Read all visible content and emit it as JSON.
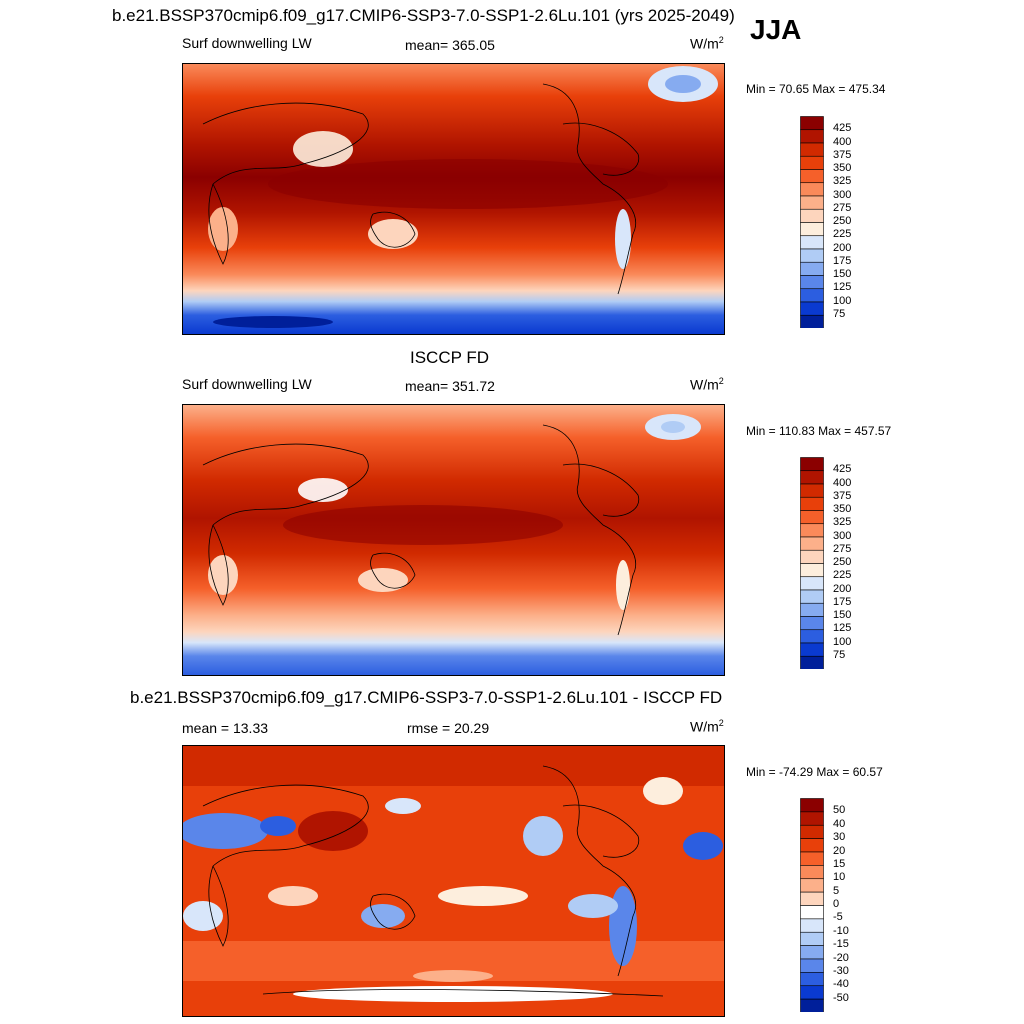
{
  "season": "JJA",
  "panels": [
    {
      "id": "model",
      "title": "b.e21.BSSP370cmip6.f09_g17.CMIP6-SSP3-7.0-SSP1-2.6Lu.101 (yrs 2025-2049)",
      "left_label": "Surf downwelling LW",
      "center_label": "mean= 365.05",
      "right_label": "W/m",
      "right_label_sup": "2",
      "minmax": "Min =  70.65 Max = 475.34",
      "colorbar_labels": [
        "425",
        "400",
        "375",
        "350",
        "325",
        "300",
        "275",
        "250",
        "225",
        "200",
        "175",
        "150",
        "125",
        "100",
        "75"
      ],
      "colorbar_colors": [
        "#8b0000",
        "#b01400",
        "#d12a00",
        "#e8400a",
        "#f5602a",
        "#fa8a5a",
        "#fcb08a",
        "#fdd5bd",
        "#fdeedd",
        "#d8e6fa",
        "#b0ccf5",
        "#86abf0",
        "#5a86ea",
        "#2c5ee0",
        "#0a3ad0",
        "#001f9a"
      ]
    },
    {
      "id": "obs",
      "title": "ISCCP FD",
      "left_label": "Surf downwelling LW",
      "center_label": "mean= 351.72",
      "right_label": "W/m",
      "right_label_sup": "2",
      "minmax": "Min = 110.83 Max = 457.57",
      "colorbar_labels": [
        "425",
        "400",
        "375",
        "350",
        "325",
        "300",
        "275",
        "250",
        "225",
        "200",
        "175",
        "150",
        "125",
        "100",
        "75"
      ],
      "colorbar_colors": [
        "#8b0000",
        "#b01400",
        "#d12a00",
        "#e8400a",
        "#f5602a",
        "#fa8a5a",
        "#fcb08a",
        "#fdd5bd",
        "#fdeedd",
        "#d8e6fa",
        "#b0ccf5",
        "#86abf0",
        "#5a86ea",
        "#2c5ee0",
        "#0a3ad0",
        "#001f9a"
      ]
    },
    {
      "id": "diff",
      "title": "b.e21.BSSP370cmip6.f09_g17.CMIP6-SSP3-7.0-SSP1-2.6Lu.101 - ISCCP FD",
      "left_label": "mean =  13.33",
      "center_label": "rmse =  20.29",
      "right_label": "W/m",
      "right_label_sup": "2",
      "minmax": "Min = -74.29 Max =  60.57",
      "colorbar_labels": [
        "50",
        "40",
        "30",
        "20",
        "15",
        "10",
        "5",
        "0",
        "-5",
        "-10",
        "-15",
        "-20",
        "-30",
        "-40",
        "-50"
      ],
      "colorbar_colors": [
        "#8b0000",
        "#b01400",
        "#d12a00",
        "#e8400a",
        "#f5602a",
        "#fa8a5a",
        "#fcb08a",
        "#fdd5bd",
        "#ffffff",
        "#d8e6fa",
        "#b0ccf5",
        "#86abf0",
        "#5a86ea",
        "#2c5ee0",
        "#0a3ad0",
        "#001f9a"
      ]
    }
  ]
}
